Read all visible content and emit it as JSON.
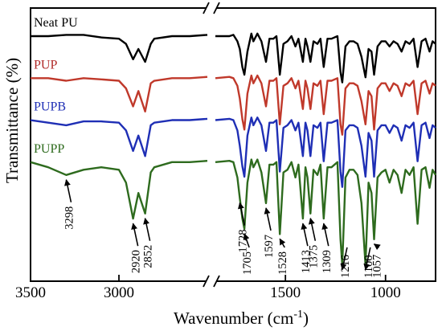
{
  "chart_data": {
    "type": "line",
    "title": "",
    "xlabel": "Wavenumber (cm",
    "xlabel_sup": "-1",
    "xlabel_end": ")",
    "ylabel": "Transmittance (%)",
    "xlim": [
      3500,
      750
    ],
    "x_break": [
      2500,
      1850
    ],
    "x_ticks": [
      "3500",
      "3000",
      "1500",
      "1000"
    ],
    "x_tick_values": [
      3500,
      3000,
      1500,
      1000
    ],
    "legend": "labels placed above each curve",
    "series": [
      {
        "name": "Neat PU",
        "color": "#000000",
        "label_color": "#000000",
        "offset": 0,
        "points": [
          [
            3500,
            0
          ],
          [
            3400,
            0
          ],
          [
            3298,
            0.5
          ],
          [
            3200,
            0.5
          ],
          [
            3100,
            -0.5
          ],
          [
            3000,
            -1
          ],
          [
            2960,
            -3
          ],
          [
            2920,
            -9
          ],
          [
            2890,
            -5
          ],
          [
            2852,
            -10
          ],
          [
            2820,
            -3
          ],
          [
            2800,
            -1
          ],
          [
            2700,
            0
          ],
          [
            2600,
            0
          ],
          [
            2500,
            0.5
          ],
          [
            1850,
            0
          ],
          [
            1780,
            0
          ],
          [
            1760,
            0.5
          ],
          [
            1740,
            -2
          ],
          [
            1728,
            -5
          ],
          [
            1715,
            -12
          ],
          [
            1705,
            -15
          ],
          [
            1690,
            -6
          ],
          [
            1670,
            1
          ],
          [
            1660,
            -2
          ],
          [
            1640,
            1
          ],
          [
            1620,
            -2
          ],
          [
            1597,
            -10
          ],
          [
            1580,
            -1
          ],
          [
            1560,
            -1
          ],
          [
            1545,
            0
          ],
          [
            1528,
            -15
          ],
          [
            1510,
            -3
          ],
          [
            1490,
            -2
          ],
          [
            1470,
            0
          ],
          [
            1450,
            -4
          ],
          [
            1435,
            -1
          ],
          [
            1413,
            -10
          ],
          [
            1400,
            -1
          ],
          [
            1390,
            -4
          ],
          [
            1375,
            -10
          ],
          [
            1360,
            -2
          ],
          [
            1340,
            -3
          ],
          [
            1325,
            -1
          ],
          [
            1309,
            -12
          ],
          [
            1290,
            -1
          ],
          [
            1270,
            -1
          ],
          [
            1240,
            0
          ],
          [
            1225,
            -14
          ],
          [
            1216,
            -18
          ],
          [
            1200,
            -4
          ],
          [
            1180,
            -2
          ],
          [
            1160,
            -2
          ],
          [
            1140,
            -3
          ],
          [
            1120,
            -8
          ],
          [
            1100,
            -16
          ],
          [
            1085,
            -5
          ],
          [
            1070,
            -6
          ],
          [
            1057,
            -15
          ],
          [
            1040,
            -4
          ],
          [
            1020,
            -2
          ],
          [
            1000,
            -2
          ],
          [
            980,
            -4
          ],
          [
            960,
            -2
          ],
          [
            940,
            -3
          ],
          [
            920,
            -6
          ],
          [
            900,
            -2
          ],
          [
            880,
            -3
          ],
          [
            860,
            -1
          ],
          [
            840,
            -12
          ],
          [
            820,
            -2
          ],
          [
            800,
            -1
          ],
          [
            780,
            -6
          ],
          [
            765,
            -2
          ],
          [
            750,
            -3
          ]
        ]
      },
      {
        "name": "PUP",
        "color": "#c0392b",
        "label_color": "#b02a28",
        "offset": -55,
        "points": [
          [
            3500,
            0
          ],
          [
            3400,
            0
          ],
          [
            3298,
            -1
          ],
          [
            3200,
            0
          ],
          [
            3100,
            -0.5
          ],
          [
            3000,
            -1
          ],
          [
            2960,
            -4
          ],
          [
            2920,
            -11
          ],
          [
            2890,
            -5
          ],
          [
            2852,
            -13
          ],
          [
            2820,
            -2
          ],
          [
            2800,
            -1
          ],
          [
            2700,
            0
          ],
          [
            2600,
            0
          ],
          [
            2500,
            0.5
          ],
          [
            1850,
            0
          ],
          [
            1780,
            0.5
          ],
          [
            1760,
            0
          ],
          [
            1740,
            -3
          ],
          [
            1728,
            -8
          ],
          [
            1715,
            -16
          ],
          [
            1705,
            -20
          ],
          [
            1690,
            -6
          ],
          [
            1670,
            1
          ],
          [
            1660,
            -2
          ],
          [
            1640,
            1
          ],
          [
            1620,
            -2
          ],
          [
            1597,
            -11
          ],
          [
            1580,
            -1
          ],
          [
            1560,
            -1
          ],
          [
            1545,
            0
          ],
          [
            1528,
            -18
          ],
          [
            1510,
            -3
          ],
          [
            1490,
            -2
          ],
          [
            1470,
            0
          ],
          [
            1450,
            -4
          ],
          [
            1435,
            -1
          ],
          [
            1413,
            -12
          ],
          [
            1400,
            -1
          ],
          [
            1390,
            -4
          ],
          [
            1375,
            -12
          ],
          [
            1360,
            -2
          ],
          [
            1340,
            -3
          ],
          [
            1325,
            -1
          ],
          [
            1309,
            -14
          ],
          [
            1290,
            -1
          ],
          [
            1270,
            -1
          ],
          [
            1240,
            0
          ],
          [
            1225,
            -18
          ],
          [
            1216,
            -22
          ],
          [
            1200,
            -4
          ],
          [
            1180,
            -2
          ],
          [
            1160,
            -2
          ],
          [
            1140,
            -3
          ],
          [
            1120,
            -9
          ],
          [
            1100,
            -18
          ],
          [
            1085,
            -5
          ],
          [
            1070,
            -7
          ],
          [
            1057,
            -20
          ],
          [
            1040,
            -4
          ],
          [
            1020,
            -2
          ],
          [
            1000,
            -2
          ],
          [
            980,
            -5
          ],
          [
            960,
            -2
          ],
          [
            940,
            -3
          ],
          [
            920,
            -7
          ],
          [
            900,
            -2
          ],
          [
            880,
            -3
          ],
          [
            860,
            -1
          ],
          [
            840,
            -14
          ],
          [
            820,
            -2
          ],
          [
            800,
            -1
          ],
          [
            780,
            -6
          ],
          [
            765,
            -2
          ],
          [
            750,
            -3
          ]
        ]
      },
      {
        "name": "PUPB",
        "color": "#1f2fb5",
        "label_color": "#1f2fb5",
        "offset": -110,
        "points": [
          [
            3500,
            0
          ],
          [
            3400,
            -1
          ],
          [
            3298,
            -2
          ],
          [
            3200,
            -0.5
          ],
          [
            3100,
            -0.5
          ],
          [
            3000,
            -1
          ],
          [
            2960,
            -4
          ],
          [
            2920,
            -12
          ],
          [
            2890,
            -6
          ],
          [
            2852,
            -14
          ],
          [
            2820,
            -2
          ],
          [
            2800,
            -1
          ],
          [
            2700,
            0
          ],
          [
            2600,
            0
          ],
          [
            2500,
            0.5
          ],
          [
            1850,
            0
          ],
          [
            1780,
            0.5
          ],
          [
            1760,
            0
          ],
          [
            1740,
            -4
          ],
          [
            1728,
            -10
          ],
          [
            1715,
            -18
          ],
          [
            1705,
            -22
          ],
          [
            1690,
            -6
          ],
          [
            1670,
            1
          ],
          [
            1660,
            -2
          ],
          [
            1640,
            1
          ],
          [
            1620,
            -2
          ],
          [
            1597,
            -12
          ],
          [
            1580,
            -1
          ],
          [
            1560,
            -1
          ],
          [
            1545,
            0
          ],
          [
            1528,
            -20
          ],
          [
            1510,
            -3
          ],
          [
            1490,
            -2
          ],
          [
            1470,
            0
          ],
          [
            1450,
            -4
          ],
          [
            1435,
            -1
          ],
          [
            1413,
            -14
          ],
          [
            1400,
            -1
          ],
          [
            1390,
            -4
          ],
          [
            1375,
            -14
          ],
          [
            1360,
            -2
          ],
          [
            1340,
            -3
          ],
          [
            1325,
            -1
          ],
          [
            1309,
            -16
          ],
          [
            1290,
            -1
          ],
          [
            1270,
            -1
          ],
          [
            1240,
            0
          ],
          [
            1225,
            -20
          ],
          [
            1216,
            -26
          ],
          [
            1200,
            -4
          ],
          [
            1180,
            -2
          ],
          [
            1160,
            -2
          ],
          [
            1140,
            -3
          ],
          [
            1120,
            -10
          ],
          [
            1100,
            -22
          ],
          [
            1085,
            -5
          ],
          [
            1070,
            -8
          ],
          [
            1057,
            -22
          ],
          [
            1040,
            -4
          ],
          [
            1020,
            -2
          ],
          [
            1000,
            -2
          ],
          [
            980,
            -5
          ],
          [
            960,
            -2
          ],
          [
            940,
            -3
          ],
          [
            920,
            -8
          ],
          [
            900,
            -2
          ],
          [
            880,
            -3
          ],
          [
            860,
            -1
          ],
          [
            840,
            -16
          ],
          [
            820,
            -2
          ],
          [
            800,
            -1
          ],
          [
            780,
            -7
          ],
          [
            765,
            -2
          ],
          [
            750,
            -3
          ]
        ]
      },
      {
        "name": "PUPP",
        "color": "#2e6b1e",
        "label_color": "#2e6b1e",
        "offset": -165,
        "points": [
          [
            3500,
            0
          ],
          [
            3400,
            -2
          ],
          [
            3298,
            -5
          ],
          [
            3200,
            -3
          ],
          [
            3100,
            -2
          ],
          [
            3000,
            -3
          ],
          [
            2960,
            -8
          ],
          [
            2920,
            -22
          ],
          [
            2890,
            -12
          ],
          [
            2852,
            -20
          ],
          [
            2820,
            -4
          ],
          [
            2800,
            -2
          ],
          [
            2700,
            0
          ],
          [
            2600,
            0
          ],
          [
            2500,
            0.5
          ],
          [
            1850,
            0
          ],
          [
            1780,
            0.5
          ],
          [
            1760,
            0
          ],
          [
            1740,
            -6
          ],
          [
            1728,
            -14
          ],
          [
            1715,
            -22
          ],
          [
            1705,
            -26
          ],
          [
            1690,
            -8
          ],
          [
            1670,
            1
          ],
          [
            1660,
            -2
          ],
          [
            1640,
            1
          ],
          [
            1620,
            -4
          ],
          [
            1597,
            -16
          ],
          [
            1580,
            -1
          ],
          [
            1560,
            -1
          ],
          [
            1545,
            0
          ],
          [
            1528,
            -28
          ],
          [
            1510,
            -4
          ],
          [
            1490,
            -3
          ],
          [
            1470,
            0
          ],
          [
            1450,
            -6
          ],
          [
            1435,
            -1
          ],
          [
            1413,
            -22
          ],
          [
            1400,
            -2
          ],
          [
            1390,
            -6
          ],
          [
            1375,
            -20
          ],
          [
            1360,
            -3
          ],
          [
            1340,
            -5
          ],
          [
            1325,
            -1
          ],
          [
            1309,
            -22
          ],
          [
            1290,
            -2
          ],
          [
            1270,
            -2
          ],
          [
            1240,
            0
          ],
          [
            1225,
            -30
          ],
          [
            1216,
            -40
          ],
          [
            1200,
            -6
          ],
          [
            1180,
            -3
          ],
          [
            1160,
            -3
          ],
          [
            1140,
            -5
          ],
          [
            1120,
            -16
          ],
          [
            1100,
            -40
          ],
          [
            1085,
            -8
          ],
          [
            1070,
            -12
          ],
          [
            1057,
            -30
          ],
          [
            1040,
            -6
          ],
          [
            1020,
            -4
          ],
          [
            1000,
            -3
          ],
          [
            980,
            -8
          ],
          [
            960,
            -3
          ],
          [
            940,
            -5
          ],
          [
            920,
            -12
          ],
          [
            900,
            -3
          ],
          [
            880,
            -5
          ],
          [
            860,
            -2
          ],
          [
            840,
            -24
          ],
          [
            820,
            -3
          ],
          [
            800,
            -2
          ],
          [
            780,
            -10
          ],
          [
            765,
            -3
          ],
          [
            750,
            -5
          ]
        ]
      }
    ],
    "annotations": [
      {
        "text": "3298",
        "x": 3298,
        "series": 3
      },
      {
        "text": "2920",
        "x": 2920,
        "series": 3
      },
      {
        "text": "2852",
        "x": 2852,
        "series": 3
      },
      {
        "text": "1728",
        "x": 1728,
        "series": 3
      },
      {
        "text": "1705",
        "x": 1705,
        "series": 3
      },
      {
        "text": "1597",
        "x": 1597,
        "series": 3
      },
      {
        "text": "1528",
        "x": 1528,
        "series": 3
      },
      {
        "text": "1413",
        "x": 1413,
        "series": 3
      },
      {
        "text": "1375",
        "x": 1375,
        "series": 3
      },
      {
        "text": "1309",
        "x": 1309,
        "series": 3
      },
      {
        "text": "1216",
        "x": 1216,
        "series": 3
      },
      {
        "text": "1100",
        "x": 1100,
        "series": 3
      },
      {
        "text": "1057",
        "x": 1057,
        "series": 3
      }
    ]
  }
}
